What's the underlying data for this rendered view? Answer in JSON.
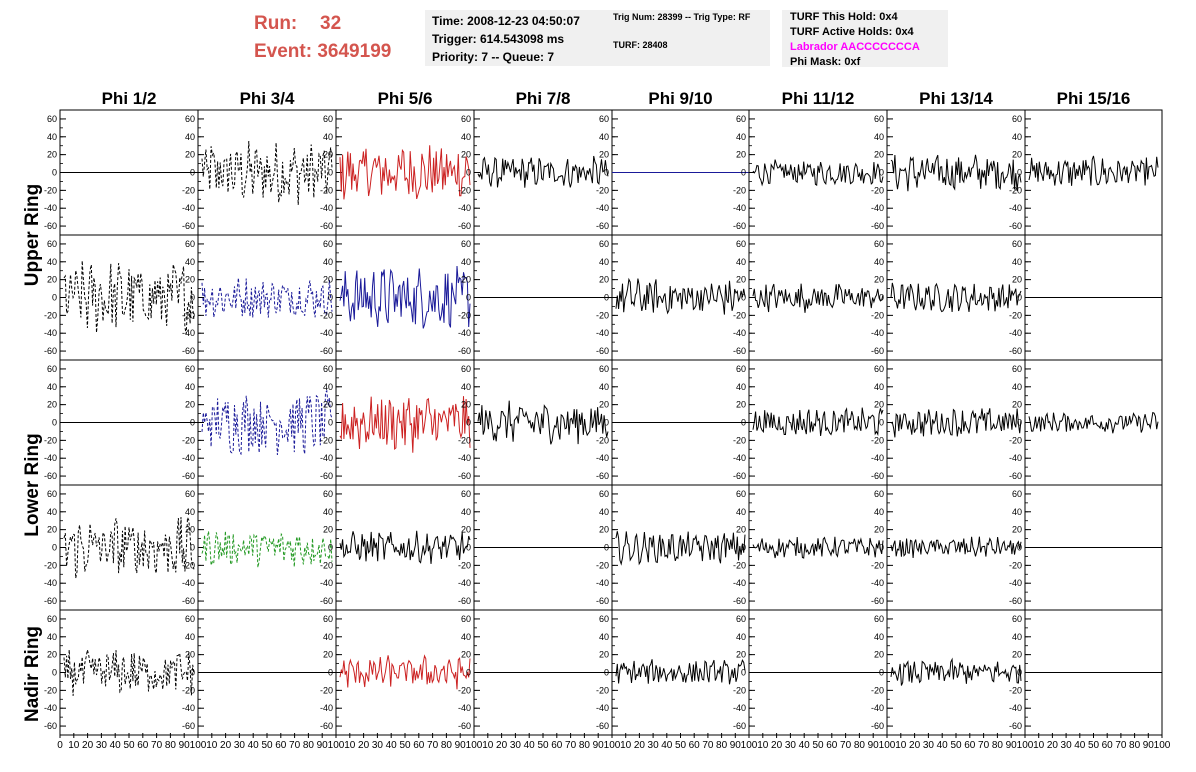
{
  "header": {
    "run_label": "Run:",
    "run_value": "32",
    "event_label": "Event:",
    "event_value": "3649199"
  },
  "info_time": {
    "time": "Time: 2008-12-23 04:50:07",
    "trigger": "Trigger: 614.543098 ms",
    "priority": "Priority: 7 -- Queue: 7"
  },
  "info_trig": {
    "trig": "Trig Num: 28399 -- Trig Type: RF",
    "turf": "TURF: 28408"
  },
  "info_turf": {
    "this_hold": "TURF This Hold: 0x4",
    "active_holds": "TURF Active Holds: 0x4",
    "labrador": "Labrador AACCCCCCCA",
    "phi_mask": "Phi Mask: 0xf"
  },
  "colors": {
    "accent_red": "#d4554e",
    "magenta": "#ff00ff",
    "trace_black": "#000000",
    "trace_red": "#cc2222",
    "trace_blue": "#1a1a99",
    "trace_green": "#229922"
  },
  "columns": [
    "Phi 1/2",
    "Phi 3/4",
    "Phi 5/6",
    "Phi 7/8",
    "Phi 9/10",
    "Phi 11/12",
    "Phi 13/14",
    "Phi 15/16"
  ],
  "row_labels": [
    "Upper Ring",
    "Lower Ring",
    "Nadir Ring"
  ],
  "y_ticks": [
    "60",
    "40",
    "20",
    "0",
    "-20",
    "-40",
    "-60"
  ],
  "x_ticks_first": [
    "0",
    "10",
    "20",
    "30",
    "40",
    "50",
    "60",
    "70",
    "80",
    "90",
    "100"
  ],
  "x_ticks_other": [
    "10",
    "20",
    "30",
    "40",
    "50",
    "60",
    "70",
    "80",
    "90",
    "100"
  ],
  "chart_data": {
    "type": "line",
    "ylim": [
      -70,
      70
    ],
    "xlim": [
      0,
      100
    ],
    "grid": false,
    "traces": [
      [
        "flat",
        "dashed",
        "red",
        "solid",
        "flat-blue",
        "solid",
        "solid",
        "solid"
      ],
      [
        "dashed",
        "dashed-blue",
        "blue",
        "flat",
        "solid",
        "solid",
        "solid",
        "flat"
      ],
      [
        "flat",
        "dashed-blue",
        "red",
        "solid",
        "flat",
        "solid",
        "solid",
        "solid"
      ],
      [
        "dashed",
        "dashed-green",
        "solid",
        "flat",
        "solid",
        "solid",
        "solid",
        "flat"
      ],
      [
        "dashed",
        "flat",
        "red",
        "flat",
        "solid",
        "flat",
        "solid",
        "flat"
      ]
    ],
    "amplitudes": [
      [
        0,
        30,
        28,
        15,
        0,
        12,
        18,
        15
      ],
      [
        35,
        20,
        30,
        0,
        18,
        14,
        14,
        0
      ],
      [
        0,
        30,
        28,
        20,
        0,
        14,
        14,
        10
      ],
      [
        30,
        18,
        15,
        0,
        15,
        10,
        10,
        0
      ],
      [
        22,
        0,
        16,
        0,
        12,
        0,
        12,
        0
      ]
    ]
  }
}
